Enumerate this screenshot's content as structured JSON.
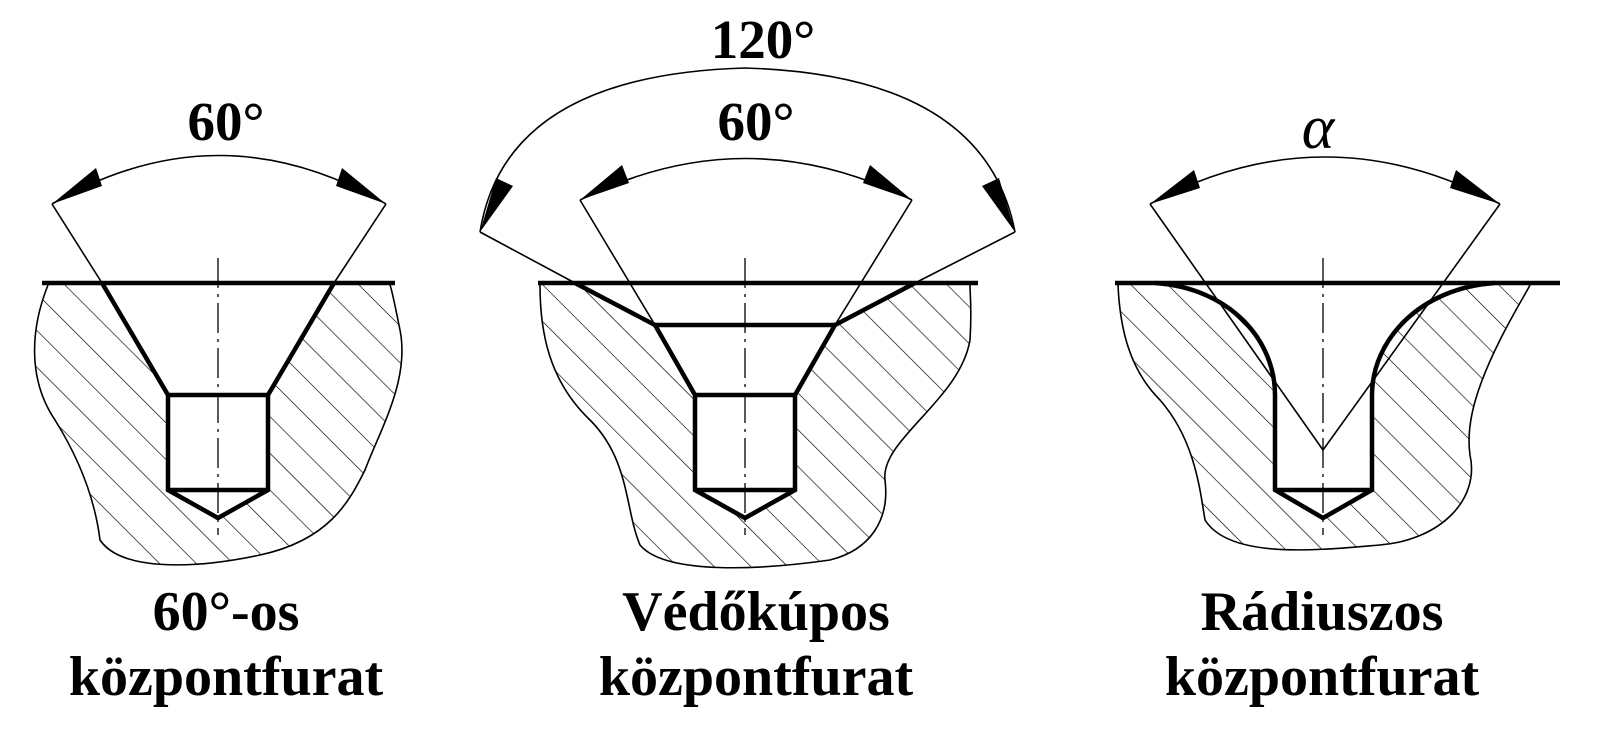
{
  "diagrams": [
    {
      "angle_label": "60°",
      "caption_line1": "60°-os",
      "caption_line2": "központfurat"
    },
    {
      "outer_angle_label": "120°",
      "inner_angle_label": "60°",
      "caption_line1": "Védőkúpos",
      "caption_line2": "központfurat"
    },
    {
      "angle_label": "α",
      "caption_line1": "Rádiuszos",
      "caption_line2": "központfurat"
    }
  ]
}
